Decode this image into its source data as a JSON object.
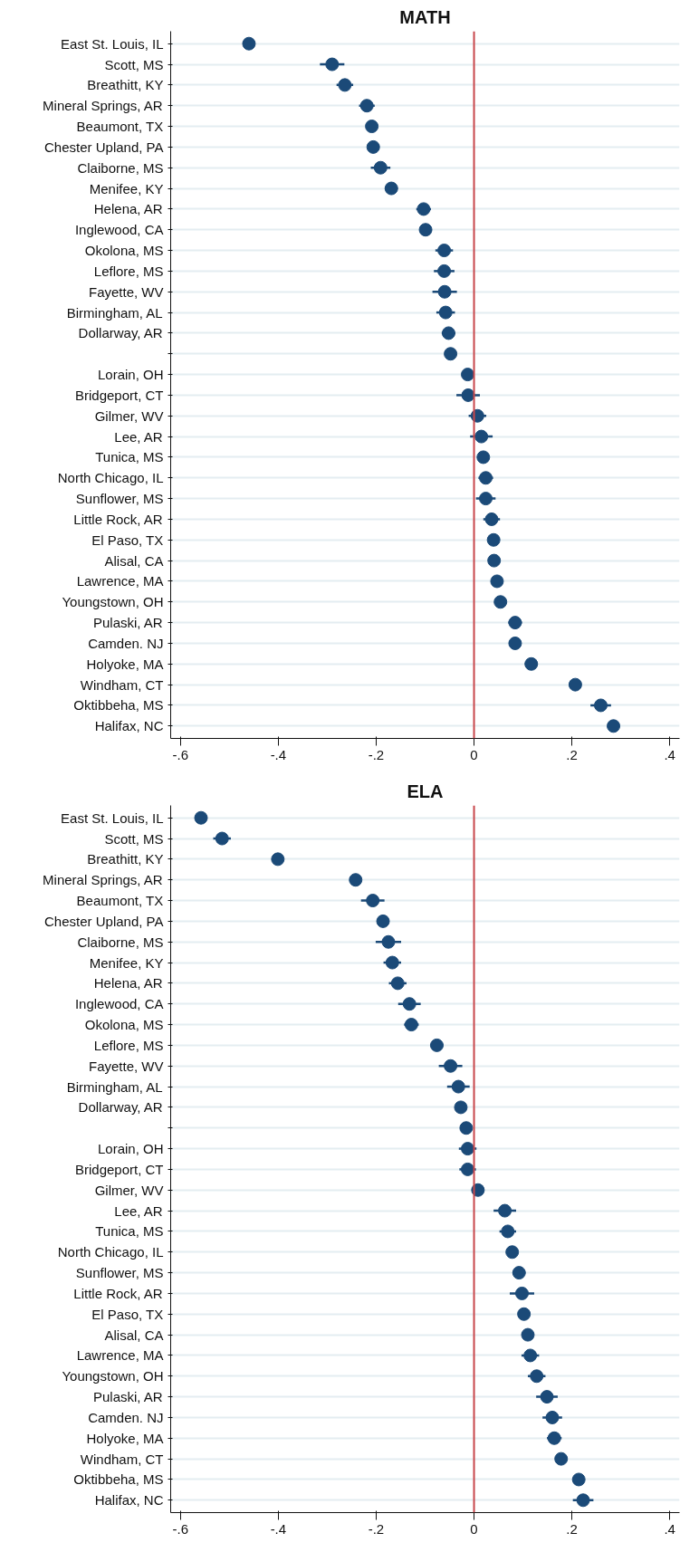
{
  "chart_data": [
    {
      "type": "scatter",
      "orientation": "horizontal",
      "title": "MATH",
      "categories": [
        "East St. Louis, IL",
        "Scott, MS",
        "Breathitt, KY",
        "Mineral Springs, AR",
        "Beaumont, TX",
        "Chester Upland, PA",
        "Claiborne, MS",
        "Menifee, KY",
        "Helena, AR",
        "Inglewood, CA",
        "Okolona, MS",
        "Leflore, MS",
        "Fayette, WV",
        "Birmingham, AL",
        "Dollarway, AR",
        null,
        "Lorain, OH",
        "Bridgeport, CT",
        "Gilmer, WV",
        "Lee, AR",
        "Tunica, MS",
        "North Chicago, IL",
        "Sunflower, MS",
        "Little Rock, AR",
        "El Paso, TX",
        "Alisal, CA",
        "Lawrence, MA",
        "Youngstown, OH",
        "Pulaski, AR",
        "Camden. NJ",
        "Holyoke, MA",
        "Windham, CT",
        "Oktibbeha, MS",
        "Halifax, NC"
      ],
      "values": [
        -0.46,
        -0.29,
        -0.264,
        -0.219,
        -0.209,
        -0.206,
        -0.191,
        -0.169,
        -0.103,
        -0.099,
        -0.061,
        -0.061,
        -0.06,
        -0.058,
        -0.052,
        -0.048,
        -0.013,
        -0.012,
        0.007,
        0.015,
        0.019,
        0.024,
        0.024,
        0.036,
        0.04,
        0.041,
        0.047,
        0.054,
        0.084,
        0.084,
        0.117,
        0.207,
        0.259,
        0.285
      ],
      "errors": [
        null,
        0.025,
        0.017,
        0.016,
        null,
        null,
        0.02,
        0.013,
        0.015,
        null,
        0.018,
        0.021,
        0.025,
        0.019,
        0.014,
        null,
        null,
        0.024,
        0.018,
        0.023,
        null,
        0.015,
        0.02,
        0.017,
        null,
        null,
        null,
        null,
        0.014,
        null,
        0.013,
        null,
        0.021,
        null
      ],
      "color": "#1b4a78",
      "marker": "circle",
      "xlim": [
        -0.62,
        0.42
      ],
      "xticks": [
        {
          "value": -0.6,
          "label": "-.6"
        },
        {
          "value": -0.4,
          "label": "-.4"
        },
        {
          "value": -0.2,
          "label": "-.2"
        },
        0,
        {
          "value": 0.2,
          "label": ".2"
        },
        {
          "value": 0.4,
          "label": ".4"
        }
      ],
      "ref_lines": [
        {
          "axis": "x",
          "value": 0,
          "color": "#c8474b"
        }
      ],
      "grid": "y"
    },
    {
      "type": "scatter",
      "orientation": "horizontal",
      "title": "ELA",
      "categories": [
        "East St. Louis, IL",
        "Scott, MS",
        "Breathitt, KY",
        "Mineral Springs, AR",
        "Beaumont, TX",
        "Chester Upland, PA",
        "Claiborne, MS",
        "Menifee, KY",
        "Helena, AR",
        "Inglewood, CA",
        "Okolona, MS",
        "Leflore, MS",
        "Fayette, WV",
        "Birmingham, AL",
        "Dollarway, AR",
        null,
        "Lorain, OH",
        "Bridgeport, CT",
        "Gilmer, WV",
        "Lee, AR",
        "Tunica, MS",
        "North Chicago, IL",
        "Sunflower, MS",
        "Little Rock, AR",
        "El Paso, TX",
        "Alisal, CA",
        "Lawrence, MA",
        "Youngstown, OH",
        "Pulaski, AR",
        "Camden. NJ",
        "Holyoke, MA",
        "Windham, CT",
        "Oktibbeha, MS",
        "Halifax, NC"
      ],
      "values": [
        -0.558,
        -0.515,
        -0.401,
        -0.242,
        -0.207,
        -0.186,
        -0.175,
        -0.167,
        -0.156,
        -0.132,
        -0.128,
        -0.076,
        -0.048,
        -0.032,
        -0.027,
        -0.016,
        -0.013,
        -0.013,
        0.008,
        0.063,
        0.069,
        0.078,
        0.092,
        0.098,
        0.102,
        0.11,
        0.115,
        0.128,
        0.149,
        0.16,
        0.164,
        0.178,
        0.214,
        0.223
      ],
      "errors": [
        null,
        0.018,
        null,
        null,
        0.024,
        null,
        0.026,
        0.018,
        0.018,
        0.023,
        0.015,
        0.013,
        0.024,
        0.023,
        0.011,
        null,
        0.018,
        0.017,
        null,
        0.023,
        0.017,
        null,
        0.013,
        0.025,
        null,
        null,
        0.018,
        0.018,
        0.022,
        0.02,
        0.015,
        null,
        0.012,
        0.021
      ],
      "color": "#1b4a78",
      "marker": "circle",
      "xlim": [
        -0.62,
        0.42
      ],
      "xticks": [
        {
          "value": -0.6,
          "label": "-.6"
        },
        {
          "value": -0.4,
          "label": "-.4"
        },
        {
          "value": -0.2,
          "label": "-.2"
        },
        0,
        {
          "value": 0.2,
          "label": ".2"
        },
        {
          "value": 0.4,
          "label": ".4"
        }
      ],
      "ref_lines": [
        {
          "axis": "x",
          "value": 0,
          "color": "#c8474b"
        }
      ],
      "grid": "y"
    }
  ]
}
